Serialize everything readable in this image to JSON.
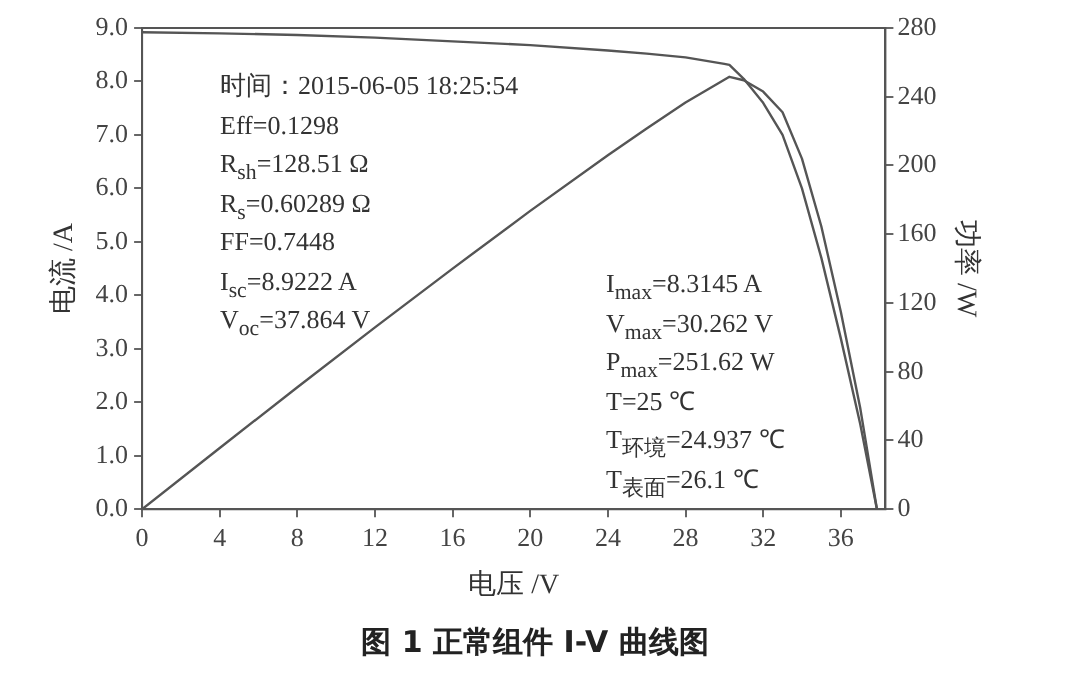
{
  "chart_data": {
    "type": "line",
    "title": "图 1 正常组件 I-V 曲线图",
    "xlabel": "电压 /V",
    "ylabel": "电流 /A",
    "y2label": "功率 /W",
    "annotations": [
      "时间：2015-06-05  18:25:54",
      "Eff=0.1298",
      "R$_{sh}$=128.51  Ω",
      "R$_{s}$=0.60289  Ω",
      "FF=0.7448",
      "I$_{sc}$=8.9222 A",
      "V$_{oc}$=37.864 V",
      "I$_{max}$=8.3145 A",
      "V$_{max}$=30.262 V",
      "P$_{max}$=251.62 W",
      "T=25 ℃",
      "T$_{环境}$=24.937 ℃",
      "T$_{表面}$=26.1 ℃"
    ],
    "series": [
      {
        "color": "#555555",
        "axis": "y",
        "x": [
          0,
          4,
          8,
          12,
          16,
          20,
          24,
          26,
          28,
          30,
          30.262,
          31,
          32,
          33,
          34,
          35,
          36,
          37,
          37.864
        ],
        "values": [
          8.92,
          8.9,
          8.87,
          8.82,
          8.75,
          8.68,
          8.58,
          8.52,
          8.45,
          8.33,
          8.31,
          8.05,
          7.6,
          7.0,
          6.0,
          4.7,
          3.2,
          1.6,
          0
        ]
      },
      {
        "color": "#555555",
        "axis": "y2",
        "x": [
          0,
          4,
          8,
          12,
          16,
          20,
          24,
          26,
          28,
          30,
          30.262,
          31,
          32,
          33,
          34,
          35,
          36,
          37,
          37.864
        ],
        "values": [
          0,
          35.6,
          71,
          105.8,
          140,
          173.6,
          205.9,
          221.5,
          236.6,
          249.9,
          251.6,
          249.6,
          243,
          231,
          204,
          164.5,
          115,
          59,
          0
        ]
      }
    ],
    "xlim": [
      0,
      38.3
    ],
    "xticks": [
      0,
      4,
      8,
      12,
      16,
      20,
      24,
      28,
      32,
      36
    ],
    "ylim": [
      0,
      9
    ],
    "yticks": [
      {
        "value": 0,
        "label": "0.0"
      },
      {
        "value": 1,
        "label": "1.0"
      },
      {
        "value": 2,
        "label": "2.0"
      },
      {
        "value": 3,
        "label": "3.0"
      },
      {
        "value": 4,
        "label": "4.0"
      },
      {
        "value": 5,
        "label": "5.0"
      },
      {
        "value": 6,
        "label": "6.0"
      },
      {
        "value": 7,
        "label": "7.0"
      },
      {
        "value": 8,
        "label": "8.0"
      },
      {
        "value": 9,
        "label": "9.0"
      }
    ],
    "y2lim": [
      0,
      280
    ],
    "y2ticks": [
      0,
      40,
      80,
      120,
      160,
      200,
      240,
      280
    ],
    "grid": false,
    "legend": false,
    "marker": "none",
    "line_style": "solid"
  }
}
